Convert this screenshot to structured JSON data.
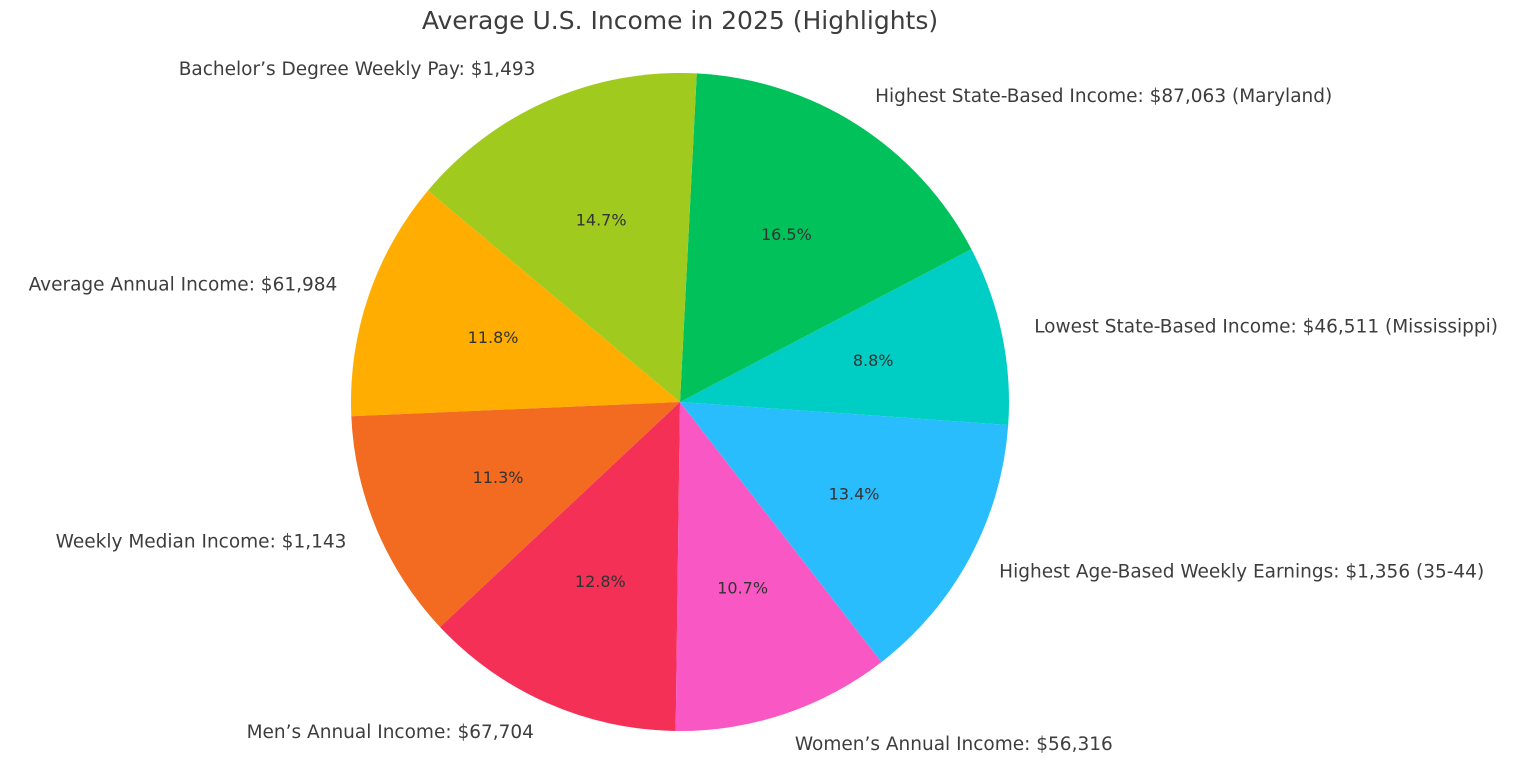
{
  "chart_data": {
    "type": "pie",
    "title": "Average U.S. Income in 2025 (Highlights)",
    "categories": [
      "Average Annual Income: $61,984",
      "Weekly Median Income: $1,143",
      "Men’s Annual Income: $67,704",
      "Women’s Annual Income: $56,316",
      "Highest Age-Based Weekly Earnings: $1,356 (35-44)",
      "Lowest State-Based Income: $46,511 (Mississippi)",
      "Highest State-Based Income: $87,063 (Maryland)",
      "Bachelor’s Degree Weekly Pay: $1,493"
    ],
    "values": [
      11.8,
      11.3,
      12.8,
      10.7,
      13.4,
      8.8,
      16.5,
      14.7
    ],
    "value_labels": [
      "11.8%",
      "11.3%",
      "12.8%",
      "10.7%",
      "13.4%",
      "8.8%",
      "16.5%",
      "14.7%"
    ],
    "colors": [
      "#ffad00",
      "#f26b21",
      "#f53057",
      "#f957c3",
      "#29bdfd",
      "#00cdc3",
      "#00c15a",
      "#a0ca1e"
    ]
  }
}
